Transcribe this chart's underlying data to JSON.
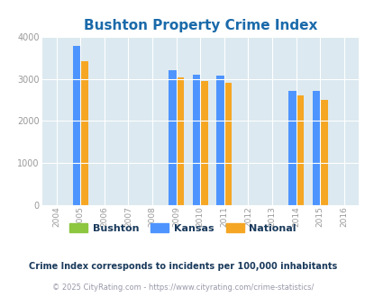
{
  "title": "Bushton Property Crime Index",
  "title_color": "#1a6aaa",
  "background_color": "#dce9f0",
  "fig_background": "#ffffff",
  "years": [
    2004,
    2005,
    2006,
    2007,
    2008,
    2009,
    2010,
    2011,
    2012,
    2013,
    2014,
    2015,
    2016
  ],
  "data_years": [
    2005,
    2009,
    2010,
    2011,
    2014,
    2015
  ],
  "kansas_values": [
    3800,
    3220,
    3110,
    3080,
    2720,
    2720
  ],
  "national_values": [
    3420,
    3050,
    2960,
    2920,
    2610,
    2510
  ],
  "kansas_color": "#4d94ff",
  "national_color": "#f5a623",
  "bushton_color": "#8dc63f",
  "bar_width": 0.32,
  "ylim": [
    0,
    4000
  ],
  "yticks": [
    0,
    1000,
    2000,
    3000,
    4000
  ],
  "xlim": [
    2003.4,
    2016.6
  ],
  "legend_labels": [
    "Bushton",
    "Kansas",
    "National"
  ],
  "footnote1": "Crime Index corresponds to incidents per 100,000 inhabitants",
  "footnote2": "© 2025 CityRating.com - https://www.cityrating.com/crime-statistics/",
  "footnote1_color": "#1a3a5c",
  "footnote2_color": "#9999aa",
  "grid_color": "#ffffff",
  "tick_color": "#999999"
}
